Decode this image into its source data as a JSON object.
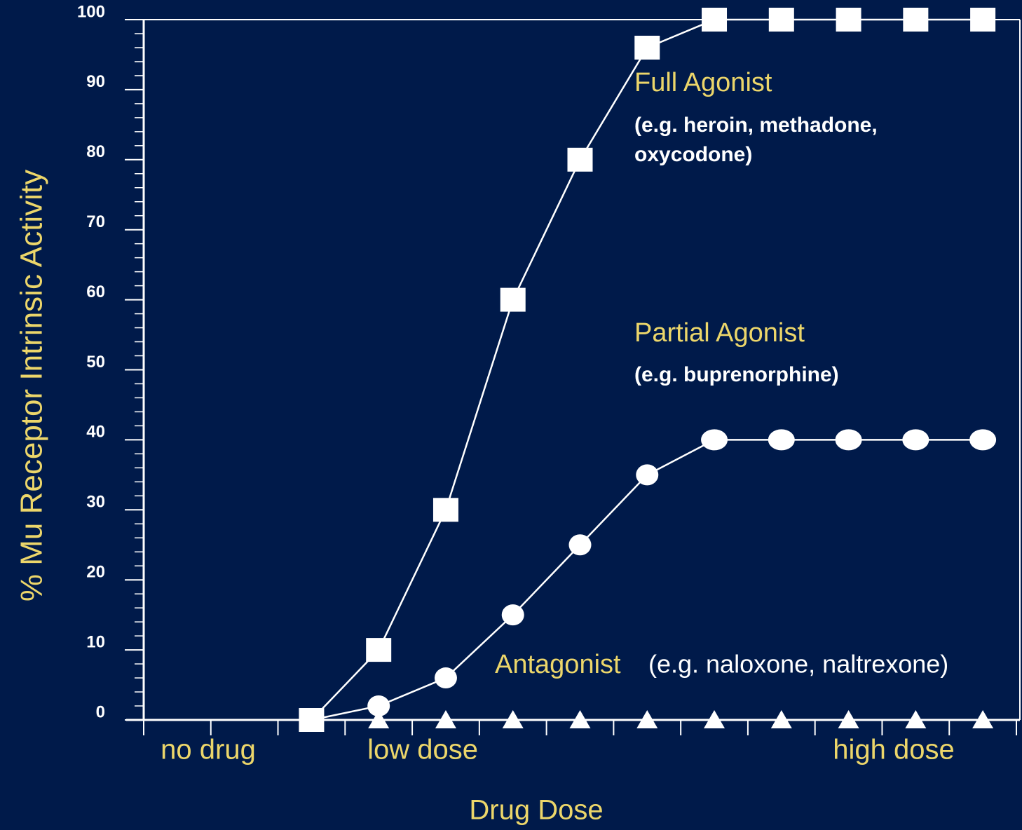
{
  "chart_data": {
    "type": "line",
    "ylabel": "% Mu Receptor Intrinsic Activity",
    "xlabel": "Drug Dose",
    "x_labels": [
      "no drug",
      "low dose",
      "high dose"
    ],
    "categories": [
      null,
      null,
      null,
      null,
      null,
      null,
      null,
      null,
      null,
      null,
      null,
      null,
      null
    ],
    "ylim": [
      0,
      100
    ],
    "yticks": [
      0,
      10,
      20,
      30,
      40,
      50,
      60,
      70,
      80,
      90,
      100
    ],
    "minor_ticks_per_major": 5,
    "series": [
      {
        "name": "Full Agonist",
        "notes": [
          "(e.g. heroin, methadone,",
          "oxycodone)"
        ],
        "color": "#ffffff",
        "marker": "square",
        "values": [
          null,
          null,
          0,
          10,
          30,
          60,
          80,
          96,
          100,
          100,
          100,
          100,
          100
        ]
      },
      {
        "name": "Partial Agonist",
        "notes": [
          "(e.g. buprenorphine)"
        ],
        "color": "#ffffff",
        "marker": "circle",
        "values": [
          null,
          null,
          0,
          2,
          6,
          15,
          25,
          35,
          40,
          40,
          40,
          40,
          40
        ]
      },
      {
        "name": "Antagonist",
        "notes": [
          "(e.g. naloxone, naltrexone)"
        ],
        "color": "#ffffff",
        "marker": "triangle",
        "values": [
          null,
          null,
          0,
          0,
          0,
          0,
          0,
          0,
          0,
          0,
          0,
          0,
          0
        ]
      }
    ]
  }
}
